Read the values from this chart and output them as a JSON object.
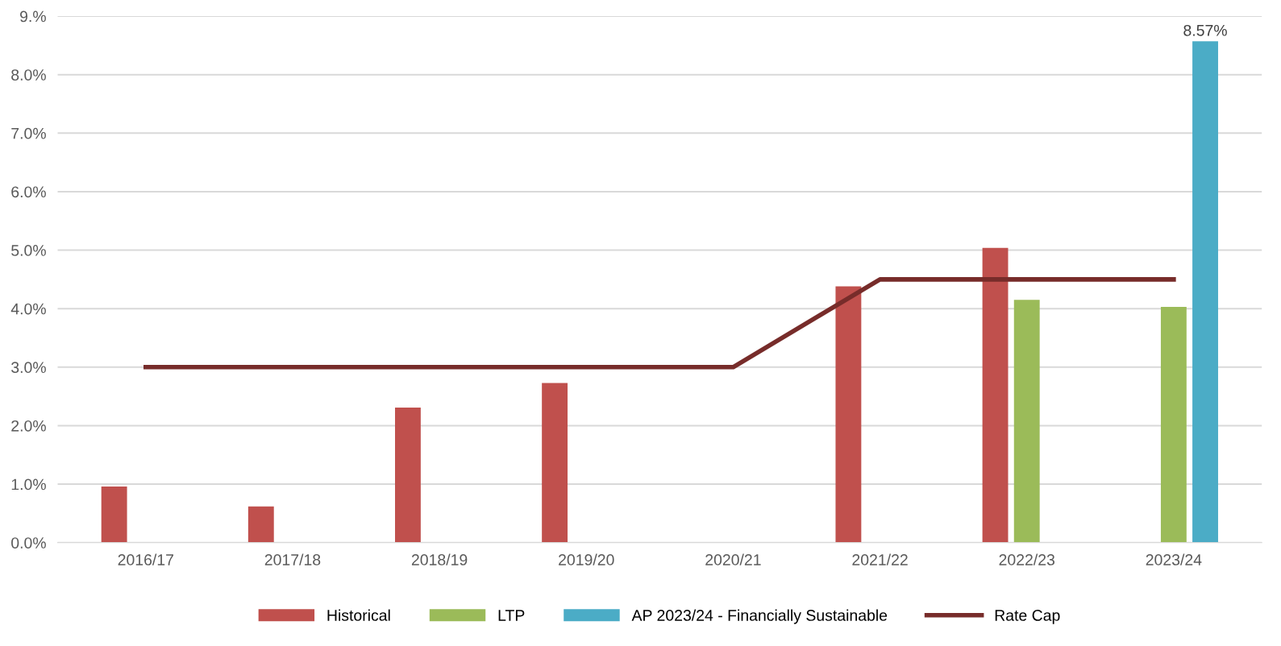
{
  "chart_data": {
    "type": "bar",
    "categories": [
      "2016/17",
      "2017/18",
      "2018/19",
      "2019/20",
      "2020/21",
      "2021/22",
      "2022/23",
      "2023/24"
    ],
    "series": [
      {
        "name": "Historical",
        "color": "#c0504d",
        "values": [
          0.96,
          0.62,
          2.31,
          2.73,
          null,
          4.38,
          5.04,
          null
        ]
      },
      {
        "name": "LTP",
        "color": "#9bbb59",
        "values": [
          null,
          null,
          null,
          null,
          null,
          null,
          4.15,
          4.03
        ]
      },
      {
        "name": "AP 2023/24 - Financially Sustainable",
        "color": "#4bacc6",
        "values": [
          null,
          null,
          null,
          null,
          null,
          null,
          null,
          8.57
        ],
        "value_labels": [
          null,
          null,
          null,
          null,
          null,
          null,
          null,
          "8.57%"
        ]
      },
      {
        "name": "Rate Cap",
        "type": "line",
        "color": "#772c2a",
        "marker": "none",
        "values": [
          3.0,
          3.0,
          3.0,
          3.0,
          3.0,
          4.5,
          4.5,
          4.5
        ]
      }
    ],
    "ylim": [
      0,
      9
    ],
    "yticks": [
      {
        "value": 0,
        "label": "0.0%"
      },
      {
        "value": 1,
        "label": "1.0%"
      },
      {
        "value": 2,
        "label": "2.0%"
      },
      {
        "value": 3,
        "label": "3.0%"
      },
      {
        "value": 4,
        "label": "4.0%"
      },
      {
        "value": 5,
        "label": "5.0%"
      },
      {
        "value": 6,
        "label": "6.0%"
      },
      {
        "value": 7,
        "label": "7.0%"
      },
      {
        "value": 8,
        "label": "8.0%"
      },
      {
        "value": 9,
        "label": "9.%"
      }
    ],
    "grid": "y",
    "legend": "bottom"
  }
}
